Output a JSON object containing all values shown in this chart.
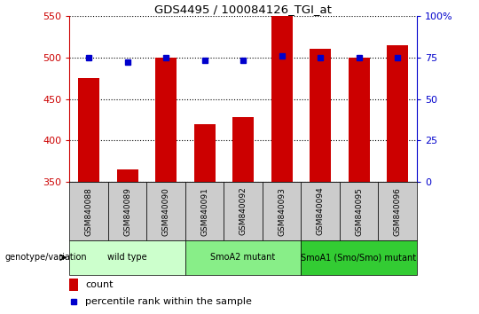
{
  "title": "GDS4495 / 100084126_TGI_at",
  "samples": [
    "GSM840088",
    "GSM840089",
    "GSM840090",
    "GSM840091",
    "GSM840092",
    "GSM840093",
    "GSM840094",
    "GSM840095",
    "GSM840096"
  ],
  "counts": [
    475,
    365,
    500,
    420,
    428,
    550,
    510,
    500,
    515
  ],
  "percentiles": [
    75,
    72,
    75,
    73,
    73,
    76,
    75,
    75,
    75
  ],
  "groups": [
    {
      "label": "wild type",
      "start": 0,
      "end": 3,
      "color": "#ccffcc"
    },
    {
      "label": "SmoA2 mutant",
      "start": 3,
      "end": 6,
      "color": "#88ee88"
    },
    {
      "label": "SmoA1 (Smo/Smo) mutant",
      "start": 6,
      "end": 9,
      "color": "#33cc33"
    }
  ],
  "bar_color": "#cc0000",
  "dot_color": "#0000cc",
  "ylim_left": [
    350,
    550
  ],
  "ylim_right": [
    0,
    100
  ],
  "yticks_left": [
    350,
    400,
    450,
    500,
    550
  ],
  "yticks_right": [
    0,
    25,
    50,
    75,
    100
  ],
  "sample_box_color": "#cccccc",
  "legend_count_color": "#cc0000",
  "legend_pct_color": "#0000cc"
}
